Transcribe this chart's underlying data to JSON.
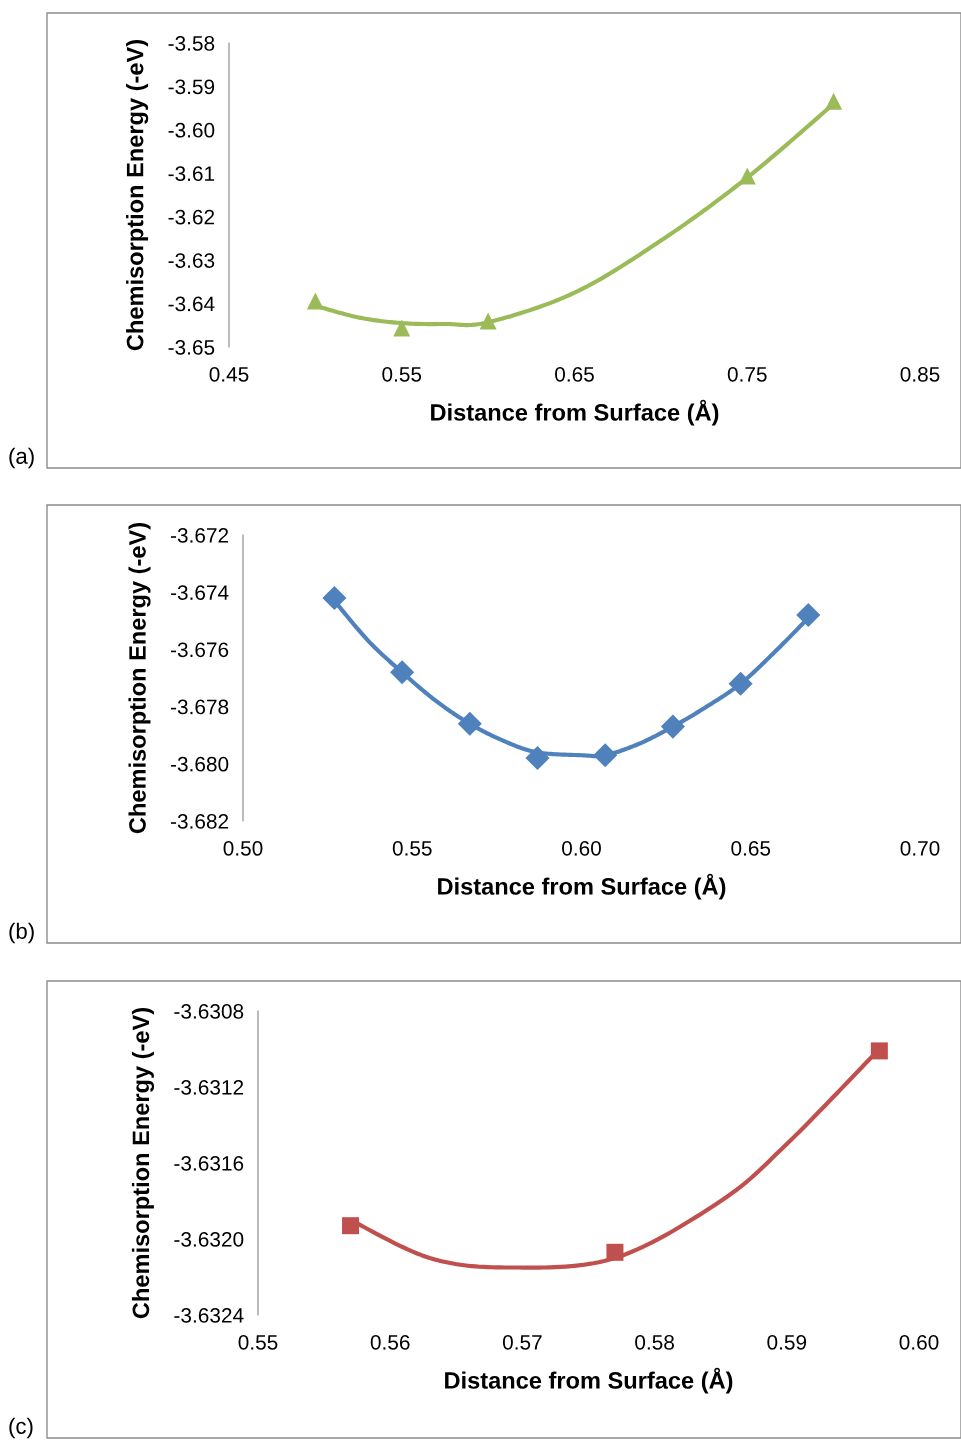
{
  "chart_data": [
    {
      "type": "scatter",
      "xlabel": "Distance from Surface (Å)",
      "ylabel": "Chemisorption Energy (-eV)",
      "annotations": [
        "(a)"
      ],
      "grid": false,
      "legend": false,
      "xlim": [
        0.45,
        0.85
      ],
      "xticks": [
        {
          "value": 0.45,
          "label": "0.45"
        },
        {
          "value": 0.55,
          "label": "0.55"
        },
        {
          "value": 0.65,
          "label": "0.65"
        },
        {
          "value": 0.75,
          "label": "0.75"
        },
        {
          "value": 0.85,
          "label": "0.85"
        }
      ],
      "ylim": [
        -3.65,
        -3.58
      ],
      "yticks": [
        {
          "value": -3.58,
          "label": "-3.58"
        },
        {
          "value": -3.59,
          "label": "-3.59"
        },
        {
          "value": -3.6,
          "label": "-3.60"
        },
        {
          "value": -3.61,
          "label": "-3.61"
        },
        {
          "value": -3.62,
          "label": "-3.62"
        },
        {
          "value": -3.63,
          "label": "-3.63"
        },
        {
          "value": -3.64,
          "label": "-3.64"
        },
        {
          "value": -3.65,
          "label": "-3.65"
        }
      ],
      "series": [
        {
          "type": "line",
          "color": "#9bbb59",
          "x": [
            0.5,
            0.525,
            0.55,
            0.575,
            0.6,
            0.65,
            0.7,
            0.75,
            0.8
          ],
          "values": [
            -3.6405,
            -3.6432,
            -3.6445,
            -3.6447,
            -3.6443,
            -3.6375,
            -3.6255,
            -3.611,
            -3.594
          ]
        },
        {
          "color": "#9bbb59",
          "marker": "triangle",
          "x": [
            0.5,
            0.55,
            0.6,
            0.75,
            0.8
          ],
          "values": [
            -3.6394,
            -3.6456,
            -3.644,
            -3.6106,
            -3.5934
          ]
        }
      ]
    },
    {
      "type": "scatter",
      "xlabel": "Distance from Surface (Å)",
      "ylabel": "Chemisorption Energy (-eV)",
      "annotations": [
        "(b)"
      ],
      "grid": false,
      "legend": false,
      "xlim": [
        0.5,
        0.7
      ],
      "xticks": [
        {
          "value": 0.5,
          "label": "0.50"
        },
        {
          "value": 0.55,
          "label": "0.55"
        },
        {
          "value": 0.6,
          "label": "0.60"
        },
        {
          "value": 0.65,
          "label": "0.65"
        },
        {
          "value": 0.7,
          "label": "0.70"
        }
      ],
      "ylim": [
        -3.682,
        -3.672
      ],
      "yticks": [
        -3.672,
        -3.674,
        -3.676,
        -3.678,
        {
          "value": -3.68,
          "label": "-3.680"
        },
        -3.682
      ],
      "series": [
        {
          "type": "line",
          "color": "#4f81bd",
          "x": [
            0.527,
            0.537,
            0.547,
            0.557,
            0.567,
            0.577,
            0.587,
            0.6,
            0.607,
            0.617,
            0.627,
            0.637,
            0.647,
            0.657,
            0.667
          ],
          "values": [
            -3.6743,
            -3.6757,
            -3.6768,
            -3.6778,
            -3.6786,
            -3.6792,
            -3.6796,
            -3.6797,
            -3.6797,
            -3.6793,
            -3.6787,
            -3.678,
            -3.6772,
            -3.6761,
            -3.6749
          ]
        },
        {
          "color": "#4f81bd",
          "marker": "diamond",
          "x": [
            0.527,
            0.547,
            0.567,
            0.587,
            0.607,
            0.627,
            0.647,
            0.667
          ],
          "values": [
            -3.6742,
            -3.6768,
            -3.6786,
            -3.6798,
            -3.6797,
            -3.6787,
            -3.6772,
            -3.6748
          ]
        }
      ]
    },
    {
      "type": "scatter",
      "xlabel": "Distance from Surface (Å)",
      "ylabel": "Chemisorption Energy (-eV)",
      "annotations": [
        "(c)"
      ],
      "grid": false,
      "legend": false,
      "xlim": [
        0.55,
        0.6
      ],
      "xticks": [
        {
          "value": 0.55,
          "label": "0.55"
        },
        {
          "value": 0.56,
          "label": "0.56"
        },
        {
          "value": 0.57,
          "label": "0.57"
        },
        {
          "value": 0.58,
          "label": "0.58"
        },
        {
          "value": 0.59,
          "label": "0.59"
        },
        {
          "value": 0.6,
          "label": "0.60"
        }
      ],
      "ylim": [
        -3.6324,
        -3.6308
      ],
      "yticks": [
        -3.6308,
        -3.6312,
        -3.6316,
        {
          "value": -3.632,
          "label": "-3.6320"
        },
        -3.6324
      ],
      "series": [
        {
          "type": "line",
          "color": "#c0504d",
          "x": [
            0.557,
            0.563,
            0.569,
            0.577,
            0.585,
            0.59,
            0.597
          ],
          "values": [
            -3.6319,
            -3.6321,
            -3.63215,
            -3.6321,
            -3.6318,
            -3.6315,
            -3.631
          ]
        },
        {
          "color": "#c0504d",
          "marker": "square",
          "x": [
            0.557,
            0.577,
            0.597
          ],
          "values": [
            -3.63193,
            -3.63207,
            -3.63101
          ]
        }
      ]
    }
  ]
}
